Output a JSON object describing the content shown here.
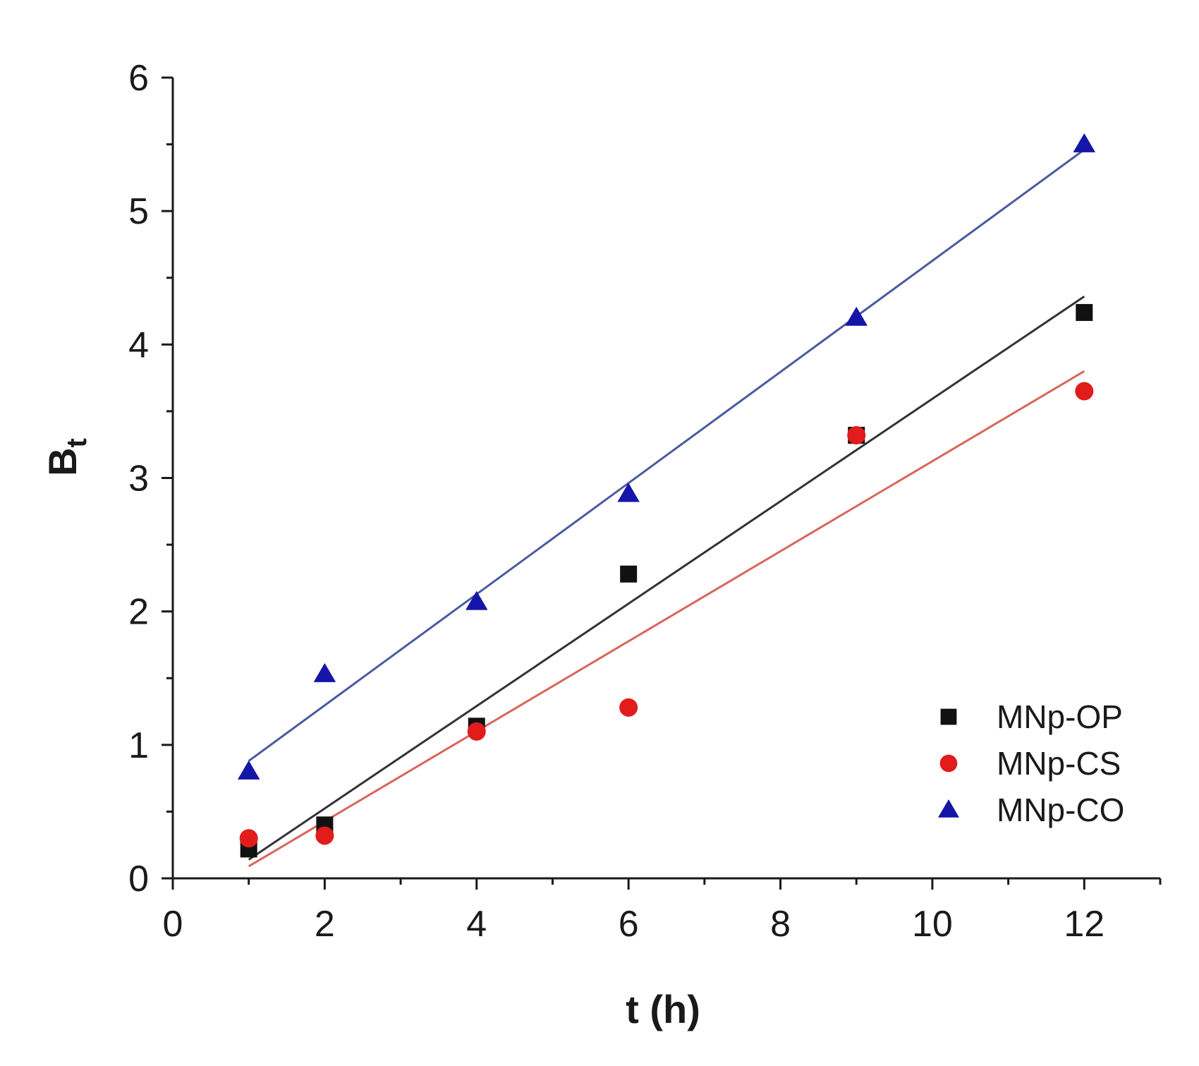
{
  "chart_data": {
    "type": "scatter",
    "title": "",
    "xlabel": "t (h)",
    "ylabel_main": "B",
    "ylabel_sub": "t",
    "xlim": [
      0,
      13
    ],
    "ylim": [
      0,
      6
    ],
    "xticks_major": [
      0,
      2,
      4,
      6,
      8,
      10,
      12
    ],
    "xticks_major_labels": [
      "0",
      "2",
      "4",
      "6",
      "8",
      "10",
      "12"
    ],
    "xticks_minor": [
      1,
      3,
      5,
      7,
      9,
      11,
      13
    ],
    "yticks_major": [
      0,
      1,
      2,
      3,
      4,
      5,
      6
    ],
    "yticks_major_labels": [
      "0",
      "1",
      "2",
      "3",
      "4",
      "5",
      "6"
    ],
    "yticks_minor": [
      0.5,
      1.5,
      2.5,
      3.5,
      4.5,
      5.5
    ],
    "grid": false,
    "legend_position": "bottom-right",
    "series": [
      {
        "name": "MNp-OP",
        "marker": "square",
        "color": "#111111",
        "line_color": "#333333",
        "x": [
          1,
          2,
          4,
          6,
          9,
          12
        ],
        "y": [
          0.22,
          0.4,
          1.14,
          2.28,
          3.32,
          4.24
        ],
        "fit": {
          "x": [
            1,
            12
          ],
          "y": [
            0.14,
            4.36
          ]
        }
      },
      {
        "name": "MNp-CS",
        "marker": "circle",
        "color": "#e21b1b",
        "line_color": "#d9655a",
        "x": [
          1,
          2,
          4,
          6,
          9,
          12
        ],
        "y": [
          0.3,
          0.32,
          1.1,
          1.28,
          3.32,
          3.65
        ],
        "fit": {
          "x": [
            1,
            12
          ],
          "y": [
            0.09,
            3.8
          ]
        }
      },
      {
        "name": "MNp-CO",
        "marker": "triangle",
        "color": "#1515a8",
        "line_color": "#4a5aa0",
        "x": [
          1,
          2,
          4,
          6,
          9,
          12
        ],
        "y": [
          0.8,
          1.53,
          2.07,
          2.88,
          4.2,
          5.5
        ],
        "fit": {
          "x": [
            1,
            12
          ],
          "y": [
            0.88,
            5.46
          ]
        }
      }
    ]
  }
}
